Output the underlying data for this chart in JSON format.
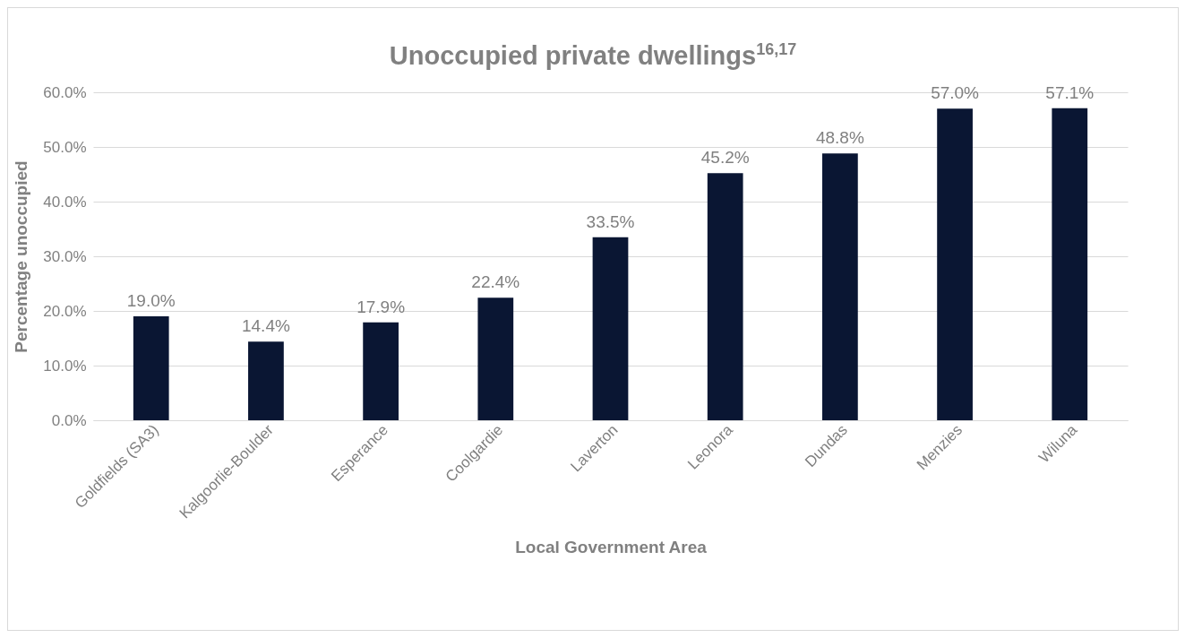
{
  "chart_data": {
    "type": "bar",
    "title": "Unoccupied private dwellings$^{16,17}$",
    "xlabel": "Local Government Area",
    "ylabel": "Percentage unoccupied",
    "categories": [
      "Goldfields (SA3)",
      "Kalgoorlie-Boulder",
      "Esperance",
      "Coolgardie",
      "Laverton",
      "Leonora",
      "Dundas",
      "Menzies",
      "Wiluna"
    ],
    "values": [
      19.0,
      14.4,
      17.9,
      22.4,
      33.5,
      45.2,
      48.8,
      57.0,
      57.1
    ],
    "value_labels": [
      "19.0%",
      "14.4%",
      "17.9%",
      "22.4%",
      "33.5%",
      "45.2%",
      "48.8%",
      "57.0%",
      "57.1%"
    ],
    "color": "#0a1633",
    "ylim": [
      0,
      60
    ],
    "yticks": [
      {
        "value": 0,
        "label": "0.0%"
      },
      {
        "value": 10,
        "label": "10.0%"
      },
      {
        "value": 20,
        "label": "20.0%"
      },
      {
        "value": 30,
        "label": "30.0%"
      },
      {
        "value": 40,
        "label": "40.0%"
      },
      {
        "value": 50,
        "label": "50.0%"
      },
      {
        "value": 60,
        "label": "60.0%"
      }
    ],
    "grid": "y"
  }
}
